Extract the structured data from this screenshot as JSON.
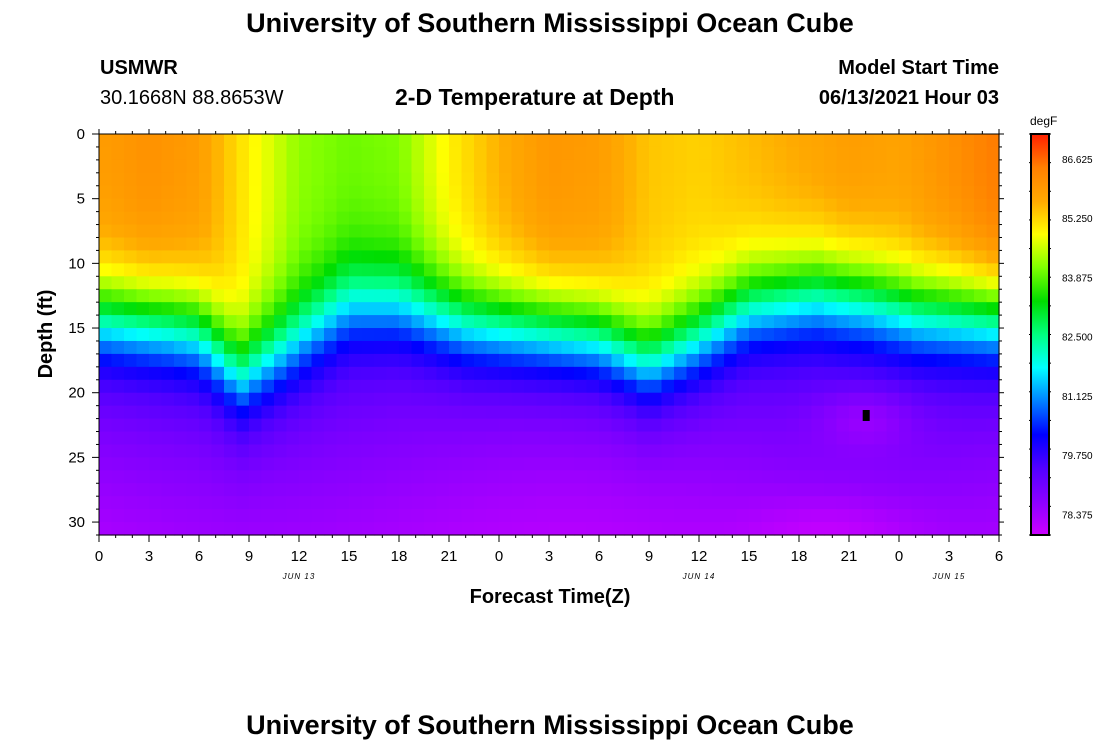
{
  "page": {
    "top_title": "University of Southern Mississippi Ocean Cube",
    "bottom_title": "University of Southern Mississippi Ocean Cube",
    "station": "USMWR",
    "coords": "30.1668N  88.8653W",
    "chart_title": "2-D Temperature at Depth",
    "model_start_label": "Model Start Time",
    "model_start_value": "06/13/2021 Hour 03"
  },
  "colors": {
    "scale": [
      "#cc00ff",
      "#8c00ff",
      "#5200ff",
      "#0000ff",
      "#0080ff",
      "#00ffff",
      "#00ff80",
      "#00dd00",
      "#80ff00",
      "#ffff00",
      "#ffaa00",
      "#ff7f00",
      "#ff2000"
    ]
  },
  "chart_data": {
    "type": "heatmap",
    "title": "2-D Temperature at Depth",
    "xlabel": "Forecast Time(Z)",
    "ylabel": "Depth (ft)",
    "x_ticks": [
      "0",
      "3",
      "6",
      "9",
      "12",
      "15",
      "18",
      "21",
      "0",
      "3",
      "6",
      "9",
      "12",
      "15",
      "18",
      "21",
      "0",
      "3",
      "6"
    ],
    "x_hours": [
      0,
      3,
      6,
      9,
      12,
      15,
      18,
      21,
      24,
      27,
      30,
      33,
      36,
      39,
      42,
      45,
      48,
      51,
      54
    ],
    "date_labels": [
      {
        "label": "JUN 13",
        "hour": 12
      },
      {
        "label": "JUN 14",
        "hour": 36
      },
      {
        "label": "JUN 15",
        "hour": 51
      }
    ],
    "xlim": [
      0,
      54
    ],
    "y_ticks": [
      "0",
      "5",
      "10",
      "15",
      "20",
      "25",
      "30"
    ],
    "y_values": [
      0,
      5,
      10,
      15,
      20,
      25,
      30
    ],
    "ylim": [
      0,
      31
    ],
    "colorbar": {
      "unit": "degF",
      "labels": [
        "86.625",
        "85.250",
        "83.875",
        "82.500",
        "81.125",
        "79.750",
        "78.375"
      ],
      "range": [
        77.9,
        87.2
      ]
    },
    "thermocline_depth": [
      {
        "hour": 0,
        "depth": 14
      },
      {
        "hour": 4,
        "depth": 14.5
      },
      {
        "hour": 6,
        "depth": 15
      },
      {
        "hour": 8.5,
        "depth": 18.5
      },
      {
        "hour": 11,
        "depth": 16.5
      },
      {
        "hour": 15,
        "depth": 13
      },
      {
        "hour": 18,
        "depth": 13
      },
      {
        "hour": 22,
        "depth": 14.5
      },
      {
        "hour": 27,
        "depth": 15
      },
      {
        "hour": 30,
        "depth": 15.5
      },
      {
        "hour": 33,
        "depth": 17.5
      },
      {
        "hour": 36,
        "depth": 15.5
      },
      {
        "hour": 39,
        "depth": 13
      },
      {
        "hour": 43,
        "depth": 12
      },
      {
        "hour": 46,
        "depth": 12.5
      },
      {
        "hour": 49,
        "depth": 13.5
      },
      {
        "hour": 54,
        "depth": 14
      }
    ],
    "surface_temperature": [
      {
        "hour": 0,
        "temp": 85.9
      },
      {
        "hour": 3,
        "temp": 86.1
      },
      {
        "hour": 6,
        "temp": 85.9
      },
      {
        "hour": 9,
        "temp": 85.0
      },
      {
        "hour": 12,
        "temp": 84.2
      },
      {
        "hour": 15,
        "temp": 84.0
      },
      {
        "hour": 18,
        "temp": 84.1
      },
      {
        "hour": 21,
        "temp": 85.0
      },
      {
        "hour": 24,
        "temp": 85.6
      },
      {
        "hour": 27,
        "temp": 86.0
      },
      {
        "hour": 30,
        "temp": 85.9
      },
      {
        "hour": 33,
        "temp": 85.4
      },
      {
        "hour": 36,
        "temp": 85.3
      },
      {
        "hour": 39,
        "temp": 85.5
      },
      {
        "hour": 42,
        "temp": 85.7
      },
      {
        "hour": 45,
        "temp": 85.9
      },
      {
        "hour": 48,
        "temp": 85.8
      },
      {
        "hour": 51,
        "temp": 86.1
      },
      {
        "hour": 54,
        "temp": 86.5
      }
    ],
    "marker": {
      "hour": 46,
      "depth": 21.8
    }
  }
}
